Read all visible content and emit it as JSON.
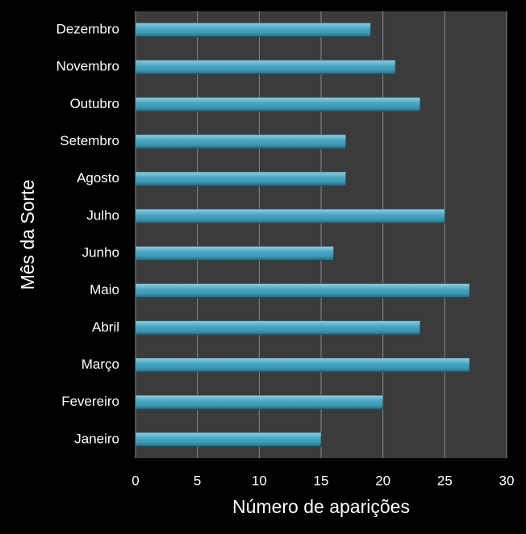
{
  "chart_data": {
    "type": "hbar",
    "x_label": "Número de aparições",
    "y_label": "Mês da Sorte",
    "categories": [
      "Janeiro",
      "Fevereiro",
      "Março",
      "Abril",
      "Maio",
      "Junho",
      "Julho",
      "Agosto",
      "Setembro",
      "Outubro",
      "Novembro",
      "Dezembro"
    ],
    "values": [
      15,
      20,
      27,
      23,
      27,
      16,
      25,
      17,
      17,
      23,
      21,
      19
    ],
    "color": "#3ea3c2",
    "xlim": [
      0,
      30
    ],
    "xticks": [
      0,
      5,
      10,
      15,
      20,
      25,
      30
    ],
    "grid": true
  }
}
